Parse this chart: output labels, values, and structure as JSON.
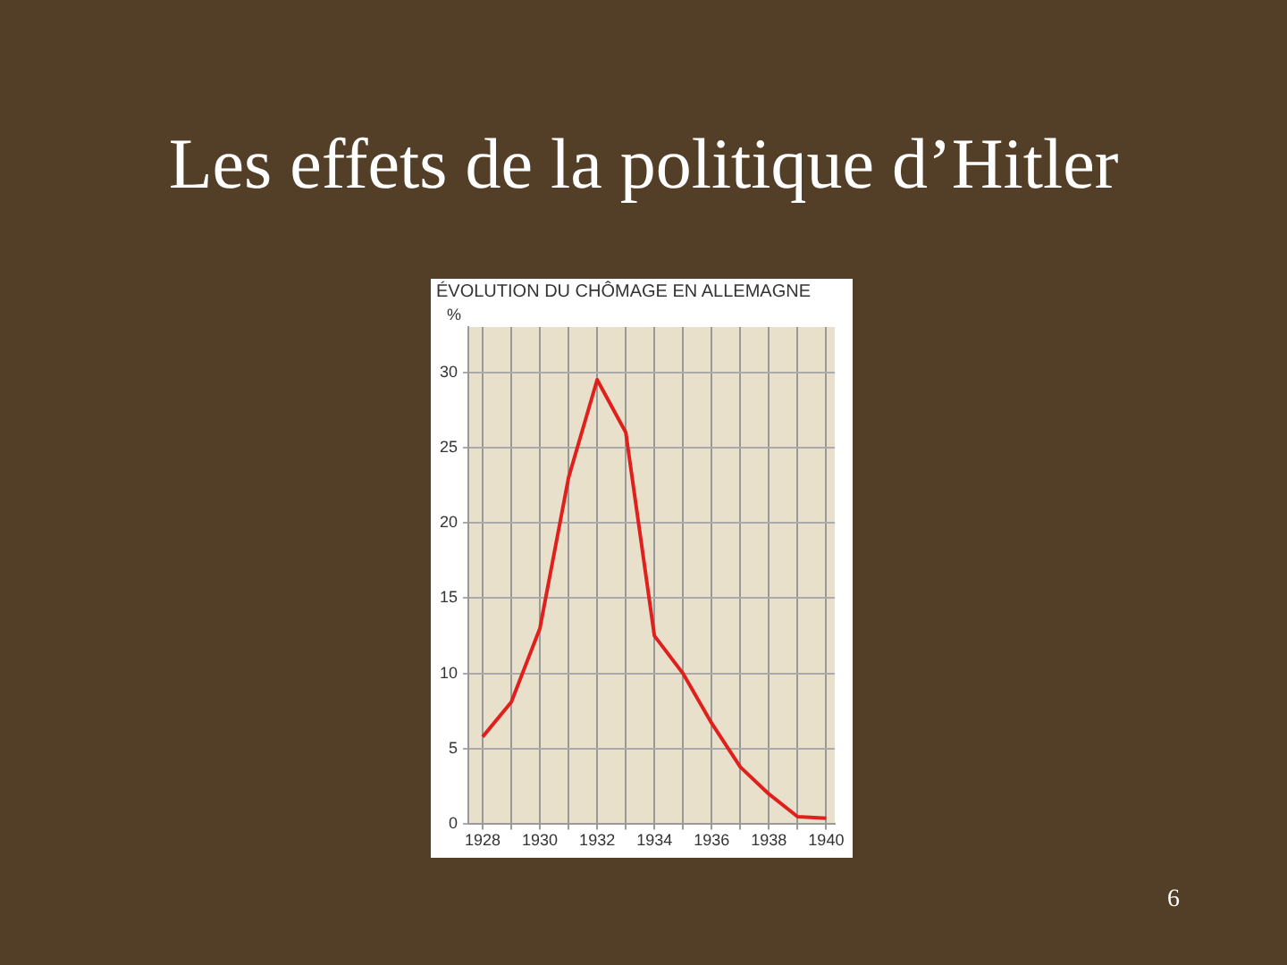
{
  "chart_data": {
    "type": "line",
    "title": "Les effets de la politique d’Hitler",
    "subtitle": "ÉVOLUTION DU CHÔMAGE EN ALLEMAGNE",
    "ylabel": "%",
    "x": [
      1928,
      1929,
      1930,
      1931,
      1932,
      1933,
      1934,
      1935,
      1936,
      1937,
      1938,
      1939,
      1940
    ],
    "series": [
      {
        "color": "#e0201c",
        "values": [
          5.8,
          8.1,
          13,
          23,
          29.5,
          26,
          12.5,
          10,
          6.7,
          3.8,
          2,
          0.5,
          0.4
        ]
      }
    ],
    "xlim": [
      1927.5,
      1940.3
    ],
    "ylim": [
      0,
      33
    ],
    "xticks": [
      1928,
      {
        "value": 1929,
        "label": null
      },
      1930,
      {
        "value": 1931,
        "label": null
      },
      1932,
      {
        "value": 1933,
        "label": null
      },
      1934,
      {
        "value": 1935,
        "label": null
      },
      1936,
      {
        "value": 1937,
        "label": null
      },
      1938,
      {
        "value": 1939,
        "label": null
      },
      1940
    ],
    "yticks": [
      0,
      5,
      10,
      15,
      20,
      25,
      30
    ],
    "grid": true,
    "marker": "none",
    "line_style": "solid",
    "annotations": [
      "6"
    ]
  }
}
